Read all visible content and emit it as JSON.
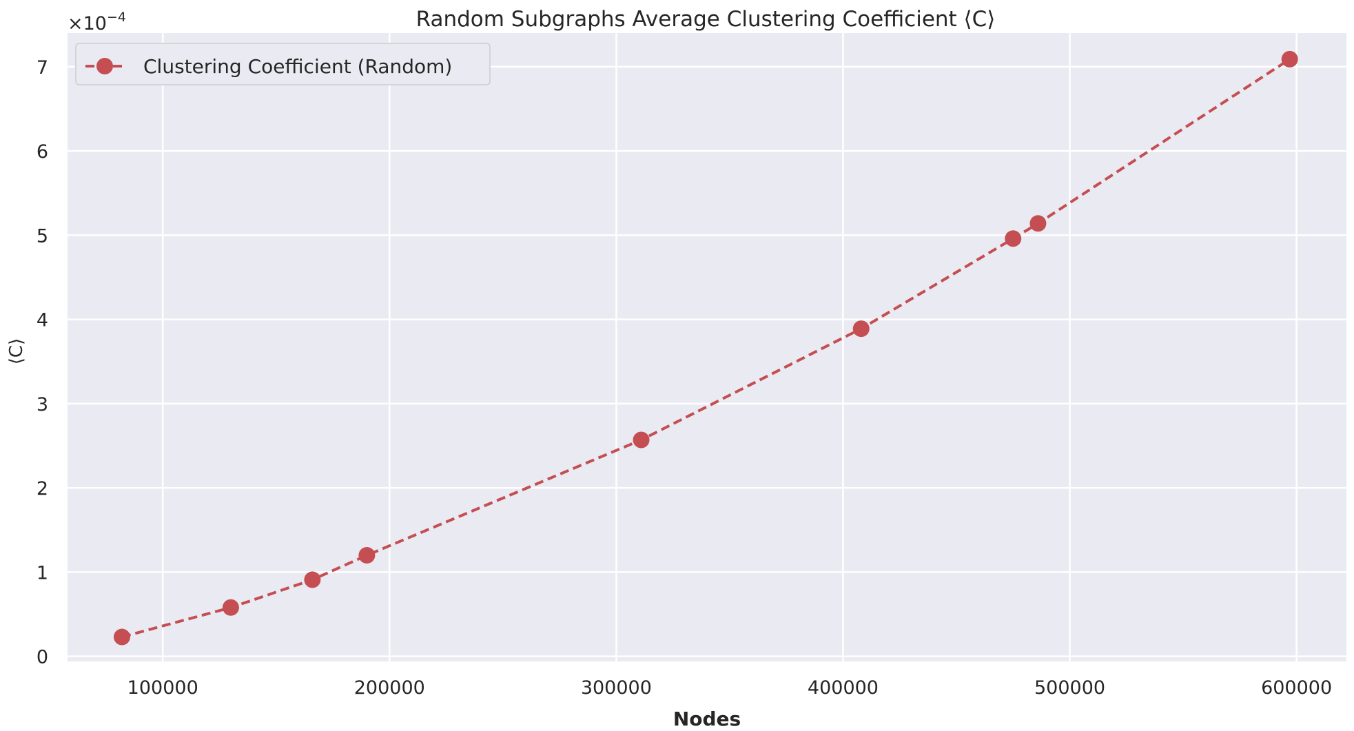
{
  "chart_data": {
    "type": "line",
    "title": "Random Subgraphs Average Clustering Coefficient ⟨C⟩",
    "xlabel": "Nodes",
    "ylabel": "⟨C⟩",
    "y_offset_label": {
      "base": "×10",
      "exponent": "−4"
    },
    "xlim": [
      58000,
      622000
    ],
    "ylim": [
      -0.06,
      7.4
    ],
    "xticks": [
      100000,
      200000,
      300000,
      400000,
      500000,
      600000
    ],
    "xtick_labels": [
      "100000",
      "200000",
      "300000",
      "400000",
      "500000",
      "600000"
    ],
    "yticks": [
      0,
      1,
      2,
      3,
      4,
      5,
      6,
      7
    ],
    "ytick_labels": [
      "0",
      "1",
      "2",
      "3",
      "4",
      "5",
      "6",
      "7"
    ],
    "grid": true,
    "legend_position": "top-left",
    "series": [
      {
        "name": "Clustering Coefficient (Random)",
        "color": "#c44e52",
        "line_style": "dashed",
        "marker": "circle",
        "x": [
          82000,
          130000,
          166000,
          190000,
          311000,
          408000,
          475000,
          486000,
          597000
        ],
        "y": [
          0.23,
          0.58,
          0.91,
          1.2,
          2.57,
          3.89,
          4.96,
          5.14,
          7.09
        ]
      }
    ]
  },
  "colors": {
    "plot_background": "#eaeaf2",
    "grid": "#ffffff",
    "text": "#262626"
  }
}
